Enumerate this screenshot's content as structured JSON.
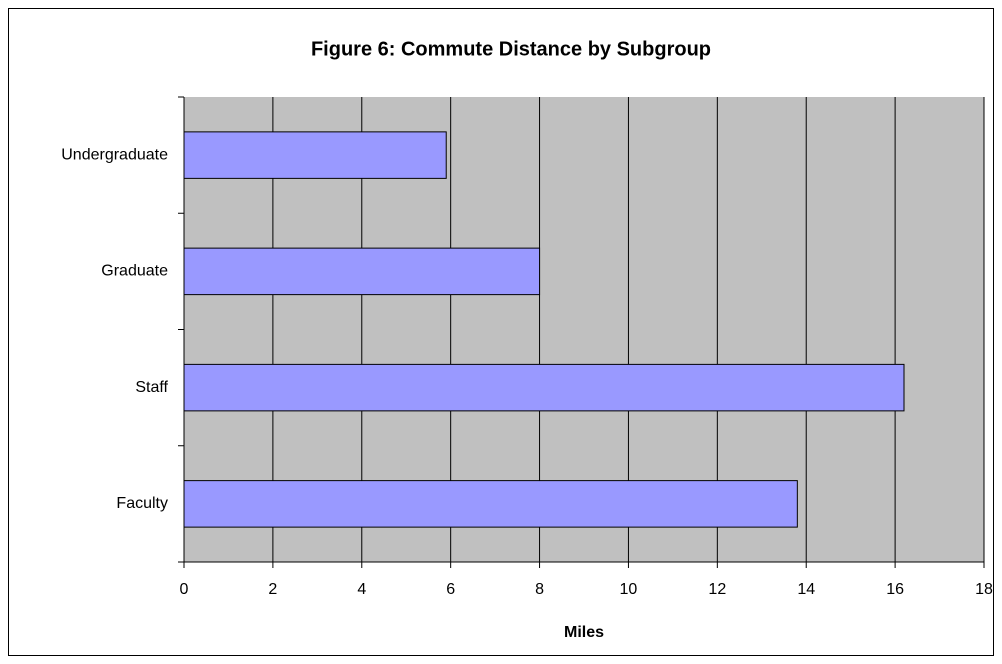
{
  "chart_data": {
    "type": "hbar",
    "title": "Figure 6: Commute Distance by Subgroup",
    "x_label": "Miles",
    "categories": [
      "Undergraduate",
      "Graduate",
      "Staff",
      "Faculty"
    ],
    "values": [
      5.9,
      8.0,
      16.2,
      13.8
    ],
    "color": "#9999ff",
    "xlim": [
      0,
      18
    ],
    "xticks": [
      0,
      2,
      4,
      6,
      8,
      10,
      12,
      14,
      16,
      18
    ],
    "grid": true
  }
}
